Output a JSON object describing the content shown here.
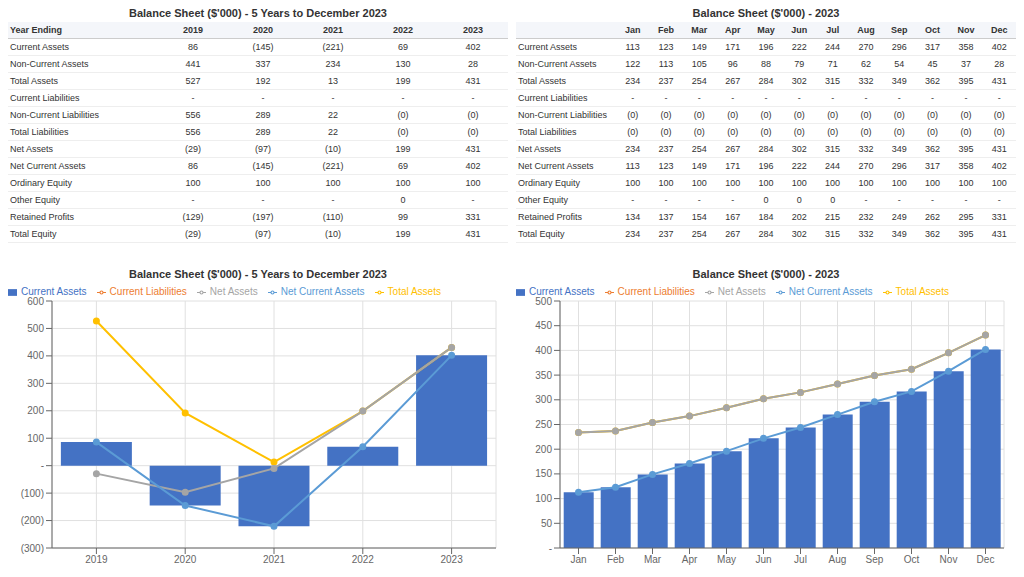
{
  "chart_data": [
    {
      "type": "bar",
      "title": "Balance Sheet ($'000) - 5 Years to December 2023",
      "categories": [
        "2019",
        "2020",
        "2021",
        "2022",
        "2023"
      ],
      "series": [
        {
          "name": "Current Assets",
          "type": "bar",
          "color": "#4472C4",
          "values": [
            86,
            -145,
            -221,
            69,
            402
          ]
        },
        {
          "name": "Current Liabilities",
          "type": "line",
          "marker": "circle",
          "color": "#ED7D31",
          "values": [
            null,
            null,
            null,
            null,
            null
          ]
        },
        {
          "name": "Total Assets",
          "type": "line",
          "marker": "circle",
          "color": "#FFC000",
          "values": [
            527,
            192,
            13,
            199,
            431
          ]
        },
        {
          "name": "Net Assets",
          "type": "line",
          "marker": "circle",
          "color": "#A5A5A5",
          "values": [
            -29,
            -97,
            -10,
            199,
            431
          ]
        },
        {
          "name": "Net Current Assets",
          "type": "line",
          "marker": "circle",
          "color": "#5B9BD5",
          "values": [
            86,
            -145,
            -221,
            69,
            402
          ]
        }
      ],
      "ylim": [
        -300,
        600
      ],
      "yticks": [
        {
          "value": -300,
          "label": "(300)"
        },
        {
          "value": -200,
          "label": "(200)"
        },
        {
          "value": -100,
          "label": "(100)"
        },
        {
          "value": 0,
          "label": "-"
        },
        100,
        200,
        300,
        400,
        500,
        600
      ],
      "grid": true,
      "legend": "upper left"
    },
    {
      "type": "bar",
      "title": "Balance Sheet ($'000) - 2023",
      "categories": [
        "Jan",
        "Feb",
        "Mar",
        "Apr",
        "May",
        "Jun",
        "Jul",
        "Aug",
        "Sep",
        "Oct",
        "Nov",
        "Dec"
      ],
      "series": [
        {
          "name": "Current Assets",
          "type": "bar",
          "color": "#4472C4",
          "values": [
            113,
            123,
            149,
            171,
            196,
            222,
            244,
            270,
            296,
            317,
            358,
            402
          ]
        },
        {
          "name": "Current Liabilities",
          "type": "line",
          "marker": "circle",
          "color": "#ED7D31",
          "values": [
            null,
            null,
            null,
            null,
            null,
            null,
            null,
            null,
            null,
            null,
            null,
            null
          ]
        },
        {
          "name": "Total Assets",
          "type": "line",
          "marker": "circle",
          "color": "#FFC000",
          "values": [
            234,
            237,
            254,
            267,
            284,
            302,
            315,
            332,
            349,
            362,
            395,
            431
          ]
        },
        {
          "name": "Net Assets",
          "type": "line",
          "marker": "circle",
          "color": "#A5A5A5",
          "values": [
            234,
            237,
            254,
            267,
            284,
            302,
            315,
            332,
            349,
            362,
            395,
            431
          ]
        },
        {
          "name": "Net Current Assets",
          "type": "line",
          "marker": "circle",
          "color": "#5B9BD5",
          "values": [
            113,
            123,
            149,
            171,
            196,
            222,
            244,
            270,
            296,
            317,
            358,
            402
          ]
        }
      ],
      "ylim": [
        0,
        500
      ],
      "yticks": [
        {
          "value": 0,
          "label": "-"
        },
        50,
        100,
        150,
        200,
        250,
        300,
        350,
        400,
        450,
        500
      ],
      "grid": true,
      "legend": "upper left"
    }
  ],
  "tables": [
    {
      "title": "Balance Sheet ($'000) - 5 Years to December 2023",
      "headers": [
        "Year Ending",
        "2019",
        "2020",
        "2021",
        "2022",
        "2023"
      ],
      "row_labels": [
        "Current Assets",
        "Non-Current Assets",
        "Total Assets",
        "Current Liabilities",
        "Non-Current Liabilities",
        "Total Liabilities",
        "Net Assets",
        "Net Current Assets",
        "Ordinary Equity",
        "Other Equity",
        "Retained Profits",
        "Total Equity"
      ],
      "rows": [
        [
          "86",
          "(145)",
          "(221)",
          "69",
          "402"
        ],
        [
          "441",
          "337",
          "234",
          "130",
          "28"
        ],
        [
          "527",
          "192",
          "13",
          "199",
          "431"
        ],
        [
          "-",
          "-",
          "-",
          "-",
          "-"
        ],
        [
          "556",
          "289",
          "22",
          "(0)",
          "(0)"
        ],
        [
          "556",
          "289",
          "22",
          "(0)",
          "(0)"
        ],
        [
          "(29)",
          "(97)",
          "(10)",
          "199",
          "431"
        ],
        [
          "86",
          "(145)",
          "(221)",
          "69",
          "402"
        ],
        [
          "100",
          "100",
          "100",
          "100",
          "100"
        ],
        [
          "-",
          "-",
          "-",
          "0",
          "-"
        ],
        [
          "(129)",
          "(197)",
          "(110)",
          "99",
          "331"
        ],
        [
          "(29)",
          "(97)",
          "(10)",
          "199",
          "431"
        ]
      ]
    },
    {
      "title": "Balance Sheet ($'000) - 2023",
      "headers": [
        "Jan",
        "Feb",
        "Mar",
        "Apr",
        "May",
        "Jun",
        "Jul",
        "Aug",
        "Sep",
        "Oct",
        "Nov",
        "Dec"
      ],
      "row_labels": [
        "Current Assets",
        "Non-Current Assets",
        "Total Assets",
        "Current Liabilities",
        "Non-Current Liabilities",
        "Total Liabilities",
        "Net Assets",
        "Net Current Assets",
        "Ordinary Equity",
        "Other Equity",
        "Retained Profits",
        "Total Equity"
      ],
      "rows": [
        [
          "113",
          "123",
          "149",
          "171",
          "196",
          "222",
          "244",
          "270",
          "296",
          "317",
          "358",
          "402"
        ],
        [
          "122",
          "113",
          "105",
          "96",
          "88",
          "79",
          "71",
          "62",
          "54",
          "45",
          "37",
          "28"
        ],
        [
          "234",
          "237",
          "254",
          "267",
          "284",
          "302",
          "315",
          "332",
          "349",
          "362",
          "395",
          "431"
        ],
        [
          "-",
          "-",
          "-",
          "-",
          "-",
          "-",
          "-",
          "-",
          "-",
          "-",
          "-",
          "-"
        ],
        [
          "(0)",
          "(0)",
          "(0)",
          "(0)",
          "(0)",
          "(0)",
          "(0)",
          "(0)",
          "(0)",
          "(0)",
          "(0)",
          "(0)"
        ],
        [
          "(0)",
          "(0)",
          "(0)",
          "(0)",
          "(0)",
          "(0)",
          "(0)",
          "(0)",
          "(0)",
          "(0)",
          "(0)",
          "(0)"
        ],
        [
          "234",
          "237",
          "254",
          "267",
          "284",
          "302",
          "315",
          "332",
          "349",
          "362",
          "395",
          "431"
        ],
        [
          "113",
          "123",
          "149",
          "171",
          "196",
          "222",
          "244",
          "270",
          "296",
          "317",
          "358",
          "402"
        ],
        [
          "100",
          "100",
          "100",
          "100",
          "100",
          "100",
          "100",
          "100",
          "100",
          "100",
          "100",
          "100"
        ],
        [
          "-",
          "-",
          "-",
          "-",
          "0",
          "0",
          "0",
          "-",
          "-",
          "-",
          "-",
          "-"
        ],
        [
          "134",
          "137",
          "154",
          "167",
          "184",
          "202",
          "215",
          "232",
          "249",
          "262",
          "295",
          "331"
        ],
        [
          "234",
          "237",
          "254",
          "267",
          "284",
          "302",
          "315",
          "332",
          "349",
          "362",
          "395",
          "431"
        ]
      ]
    }
  ]
}
